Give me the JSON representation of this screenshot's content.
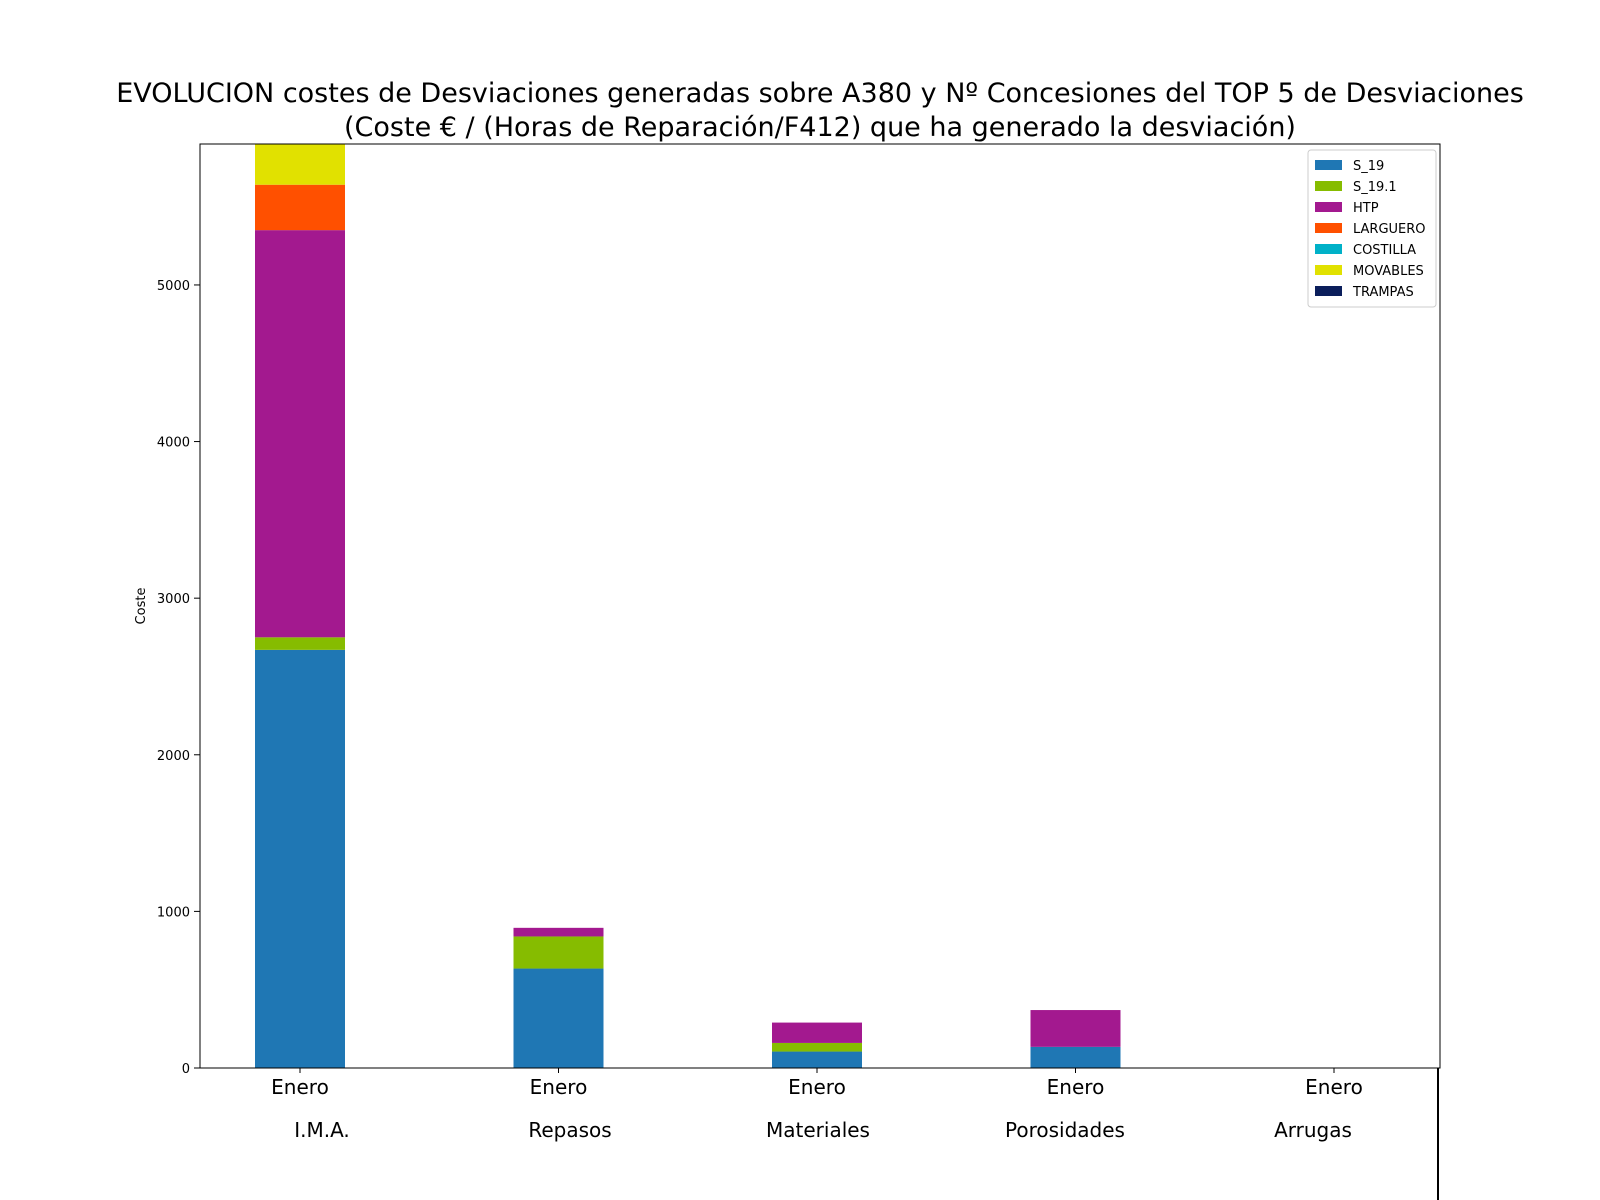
{
  "chart_data": {
    "type": "bar",
    "stacked": true,
    "title": "EVOLUCION costes de Desviaciones  generadas sobre A380 y Nº Concesiones del TOP 5 de Desviaciones",
    "subtitle": "(Coste € / (Horas de Reparación/F412) que ha generado la desviación)",
    "xlabel": "",
    "ylabel": "Coste",
    "ylim": [
      0,
      5900
    ],
    "yticks": [
      0,
      1000,
      2000,
      3000,
      4000,
      5000
    ],
    "categories": [
      "Enero",
      "Enero",
      "Enero",
      "Enero",
      "Enero"
    ],
    "groups": [
      "I.M.A.",
      "Repasos",
      "Materiales",
      "Porosidades",
      "Arrugas"
    ],
    "legend_position": "top-right",
    "series": [
      {
        "name": "S_19",
        "color": "#1f77b4",
        "values": [
          2670,
          635,
          105,
          135,
          0
        ]
      },
      {
        "name": "S_19.1",
        "color": "#86bc00",
        "values": [
          80,
          205,
          55,
          0,
          0
        ]
      },
      {
        "name": "HTP",
        "color": "#a3198f",
        "values": [
          2600,
          55,
          130,
          235,
          0
        ]
      },
      {
        "name": "LARGUERO",
        "color": "#ff5000",
        "values": [
          290,
          0,
          0,
          0,
          0
        ]
      },
      {
        "name": "COSTILLA",
        "color": "#00b1c8",
        "values": [
          0,
          0,
          0,
          0,
          0
        ]
      },
      {
        "name": "MOVABLES",
        "color": "#e1e100",
        "values": [
          260,
          0,
          0,
          0,
          0
        ]
      },
      {
        "name": "TRAMPAS",
        "color": "#0b1e5b",
        "values": [
          0,
          0,
          0,
          0,
          0
        ]
      }
    ]
  }
}
